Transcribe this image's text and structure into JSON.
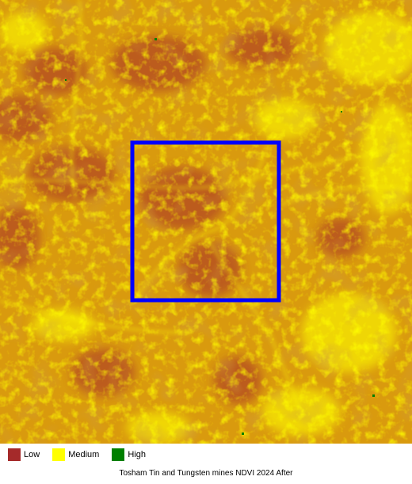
{
  "map": {
    "colors": {
      "base": "#d99a0e",
      "low": "#a52a2a",
      "medium": "#ffff00",
      "high": "#008000",
      "aoi_box": "#0000ff"
    }
  },
  "legend": {
    "items": [
      {
        "label": "Low",
        "color": "#a52a2a"
      },
      {
        "label": "Medium",
        "color": "#ffff00"
      },
      {
        "label": "High",
        "color": "#008000"
      }
    ]
  },
  "caption": "Tosham Tin and Tungsten mines NDVI 2024 After"
}
